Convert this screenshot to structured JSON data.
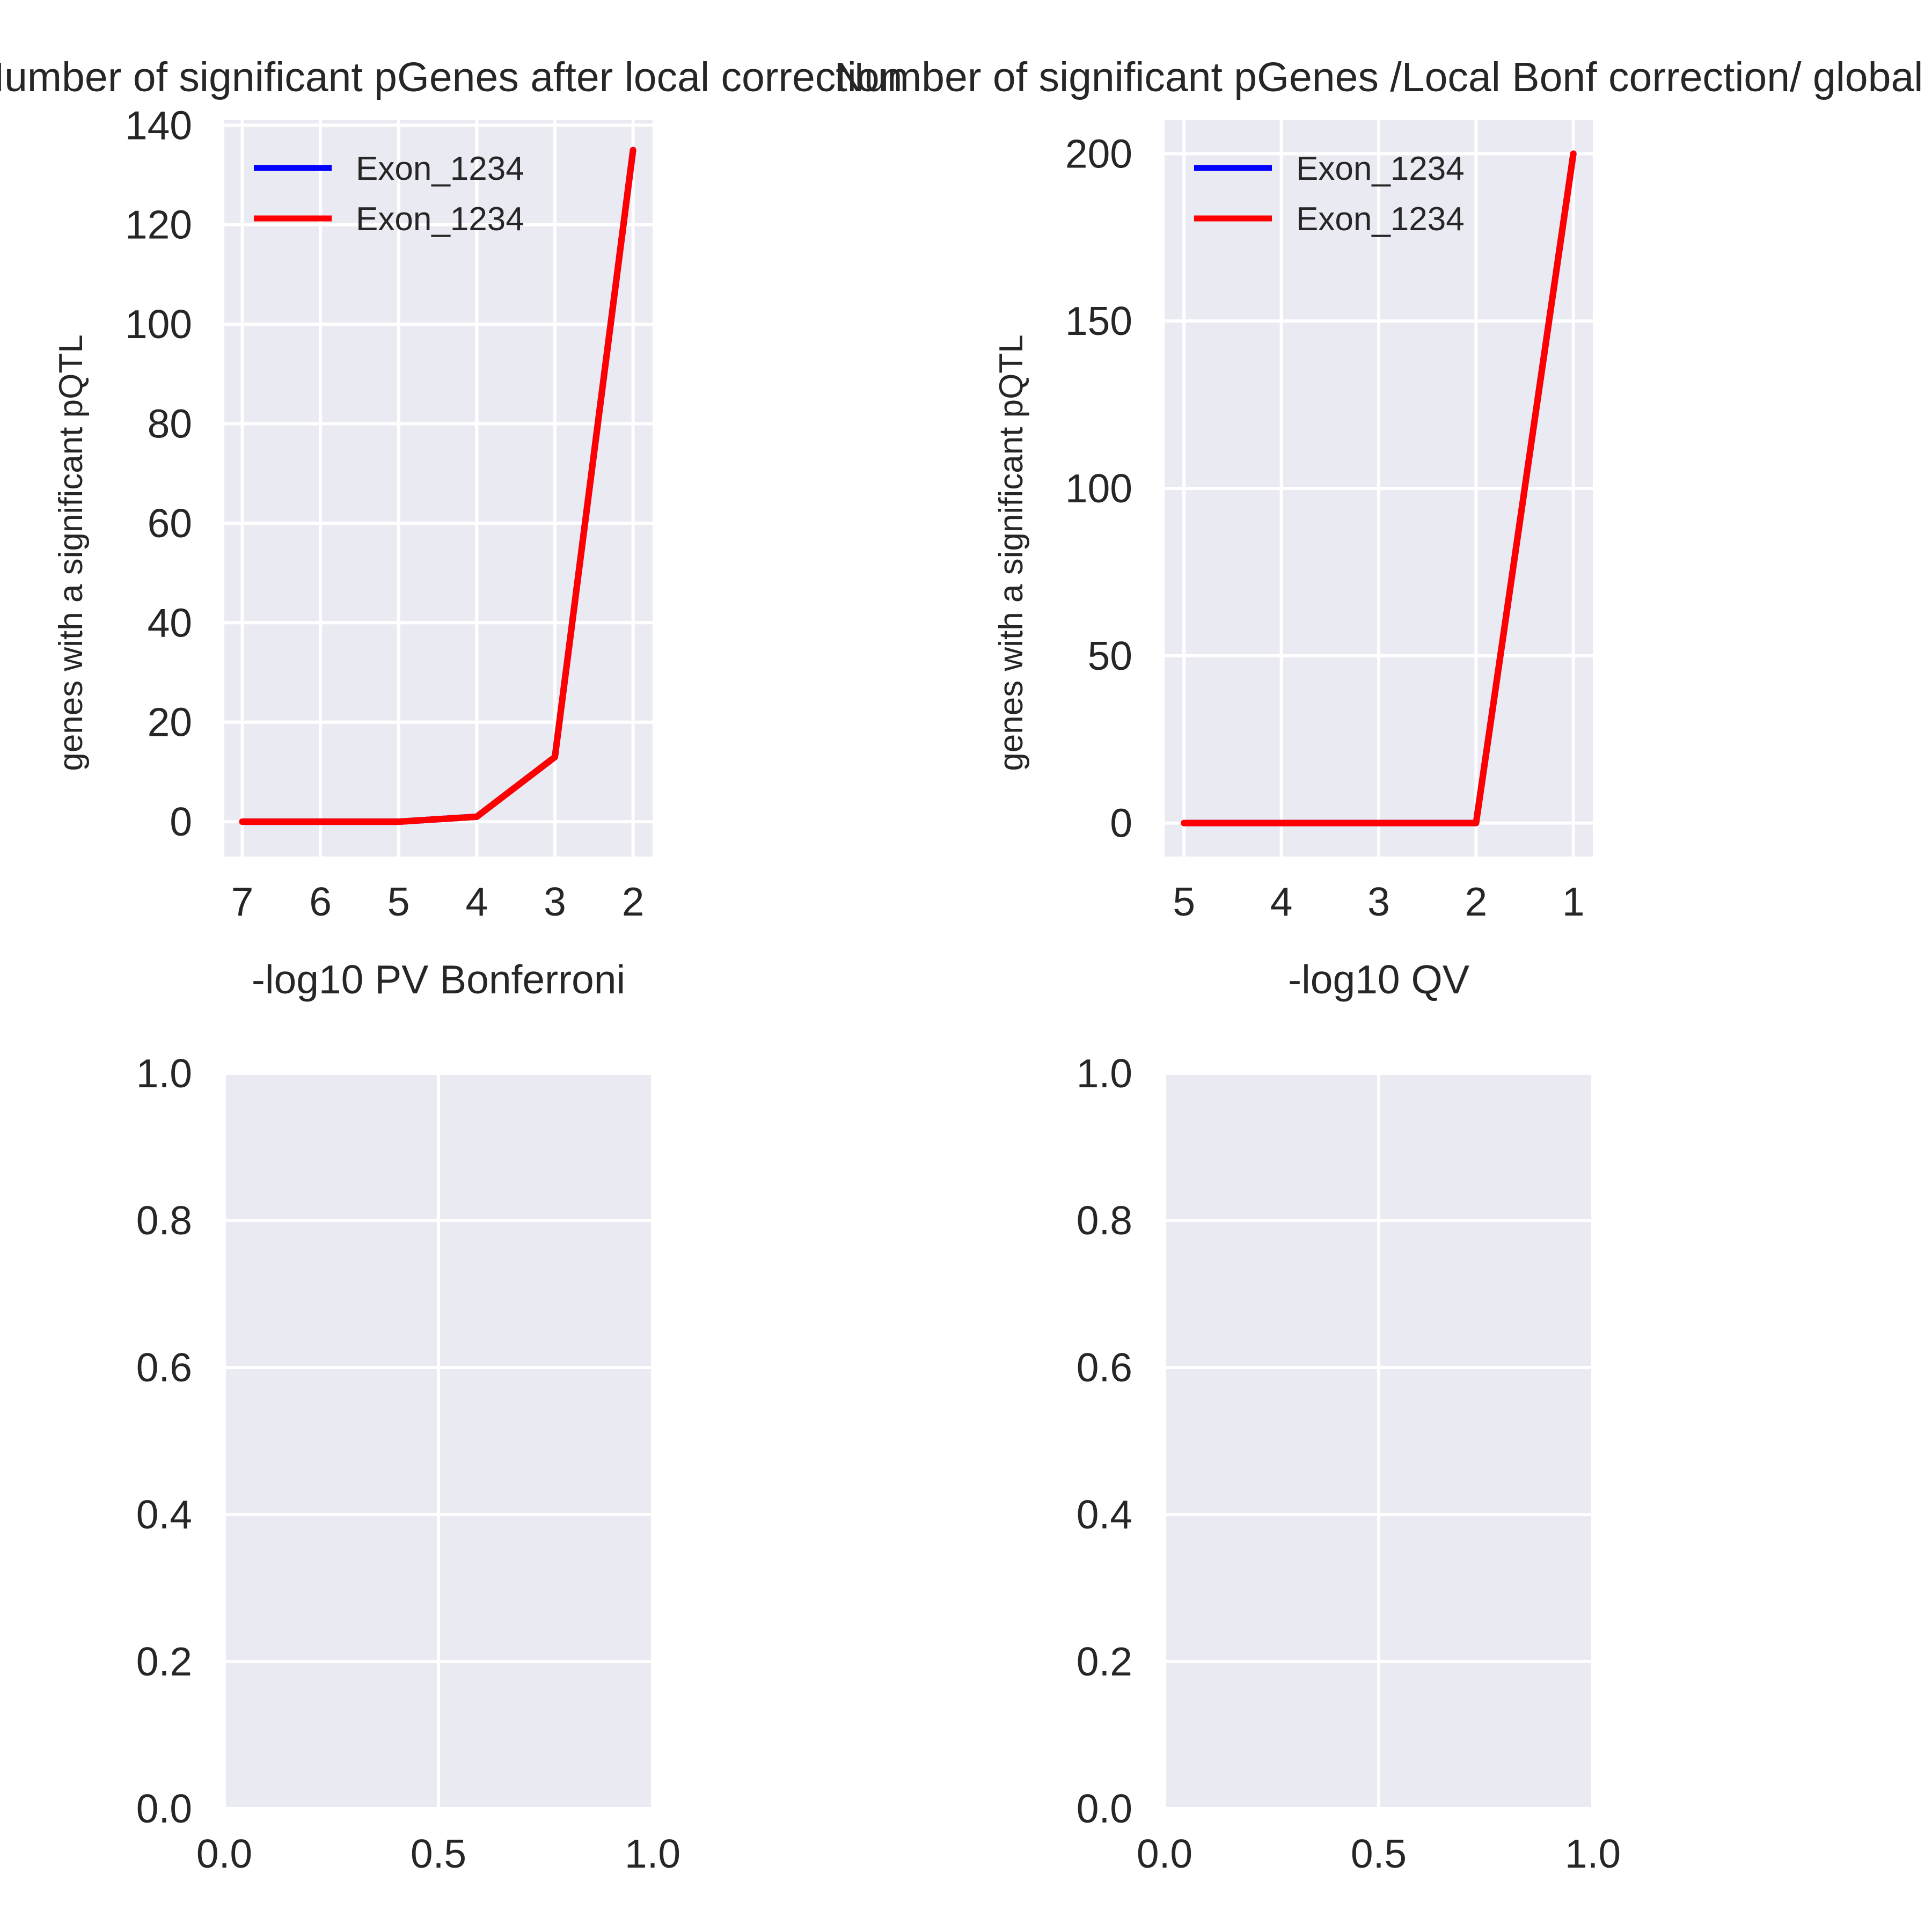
{
  "chart_data": [
    {
      "type": "line",
      "title": "Number of significant pGenes after local correction",
      "xlabel": "-log10 PV Bonferroni",
      "ylabel": "genes with a significant pQTL",
      "x": [
        7,
        6,
        5,
        4,
        3,
        2
      ],
      "x_tick_labels": [
        "7",
        "6",
        "5",
        "4",
        "3",
        "2"
      ],
      "x_inverted": true,
      "y_tick_labels": [
        "0",
        "20",
        "40",
        "60",
        "80",
        "100",
        "120",
        "140"
      ],
      "xlim": [
        7.23,
        1.75
      ],
      "ylim": [
        -7,
        141
      ],
      "series": [
        {
          "name": "Exon_1234",
          "color": "#0000ff",
          "values": [
            0,
            0,
            0,
            1,
            13,
            135
          ]
        },
        {
          "name": "Exon_1234",
          "color": "#ff0000",
          "values": [
            0,
            0,
            0,
            1,
            13,
            135
          ]
        }
      ],
      "legend_position": "upper-left",
      "grid": true,
      "background": "#eaeaf2"
    },
    {
      "type": "line",
      "title": "Number of significant pGenes /Local Bonf correction/ global",
      "xlabel": "-log10 QV",
      "ylabel": "genes with a significant pQTL",
      "x": [
        5,
        4,
        3,
        2,
        1
      ],
      "x_tick_labels": [
        "5",
        "4",
        "3",
        "2",
        "1"
      ],
      "x_inverted": true,
      "y_tick_labels": [
        "0",
        "50",
        "100",
        "150",
        "200"
      ],
      "xlim": [
        5.2,
        0.8
      ],
      "ylim": [
        -10,
        210
      ],
      "series": [
        {
          "name": "Exon_1234",
          "color": "#0000ff",
          "values": [
            0,
            0,
            0,
            0,
            200
          ]
        },
        {
          "name": "Exon_1234",
          "color": "#ff0000",
          "values": [
            0,
            0,
            0,
            0,
            200
          ]
        }
      ],
      "legend_position": "upper-left",
      "grid": true,
      "background": "#eaeaf2"
    },
    {
      "type": "line",
      "title": "",
      "xlabel": "",
      "ylabel": "",
      "x_tick_labels": [
        "0.0",
        "0.5",
        "1.0"
      ],
      "y_tick_labels": [
        "0.0",
        "0.2",
        "0.4",
        "0.6",
        "0.8",
        "1.0"
      ],
      "xlim": [
        0,
        1
      ],
      "ylim": [
        0,
        1
      ],
      "series": [],
      "grid": true,
      "background": "#eaeaf2"
    },
    {
      "type": "line",
      "title": "",
      "xlabel": "",
      "ylabel": "",
      "x_tick_labels": [
        "0.0",
        "0.5",
        "1.0"
      ],
      "y_tick_labels": [
        "0.0",
        "0.2",
        "0.4",
        "0.6",
        "0.8",
        "1.0"
      ],
      "xlim": [
        0,
        1
      ],
      "ylim": [
        0,
        1
      ],
      "series": [],
      "grid": true,
      "background": "#eaeaf2"
    }
  ]
}
